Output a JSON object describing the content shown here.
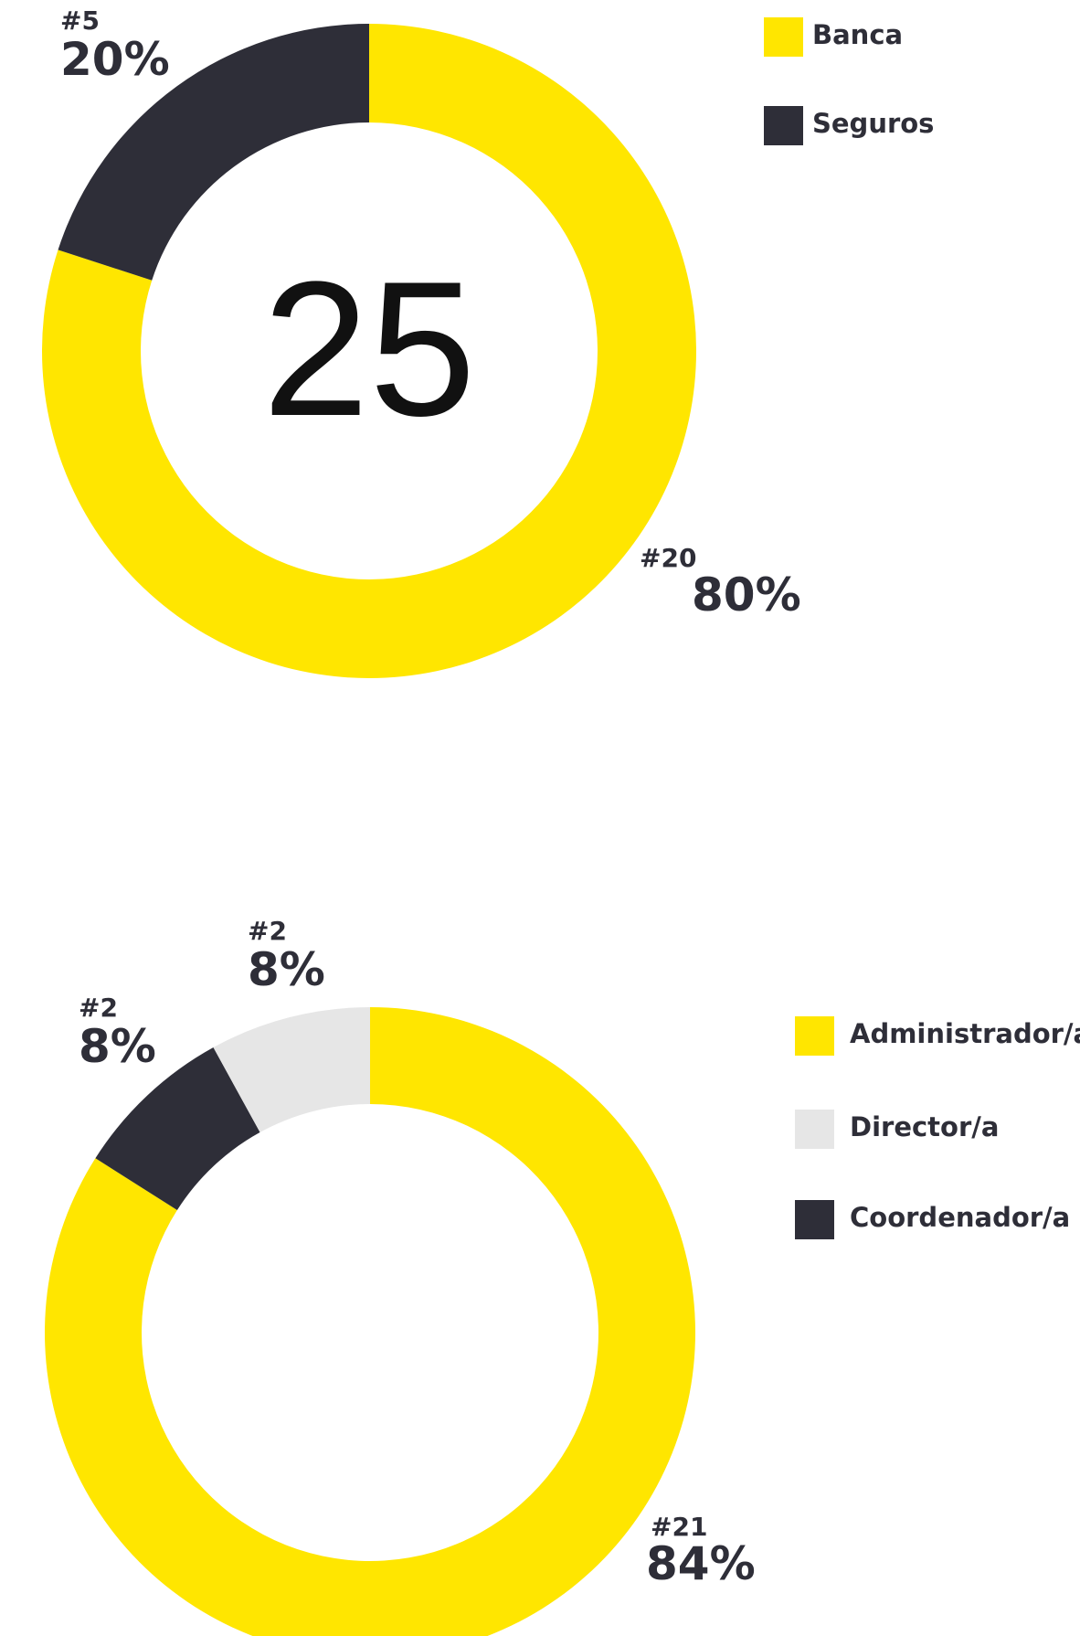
{
  "chart_data": [
    {
      "type": "donut",
      "total": 25,
      "categories": [
        "Banca",
        "Seguros"
      ],
      "values": [
        80,
        20
      ],
      "value_labels": [
        "80%",
        "20%"
      ],
      "counts": [
        20,
        5
      ],
      "count_labels": [
        "#20",
        "#5"
      ],
      "colors": [
        "#ffe600",
        "#2e2e38"
      ]
    },
    {
      "type": "donut",
      "categories": [
        "Administrador/a",
        "Coordenador/a",
        "Director/a"
      ],
      "values": [
        84,
        8,
        8
      ],
      "value_labels": [
        "84%",
        "8%",
        "8%"
      ],
      "counts": [
        21,
        2,
        2
      ],
      "count_labels": [
        "#21",
        "#2",
        "#2"
      ],
      "colors": [
        "#ffe600",
        "#2e2e38",
        "#e6e6e6"
      ]
    }
  ]
}
